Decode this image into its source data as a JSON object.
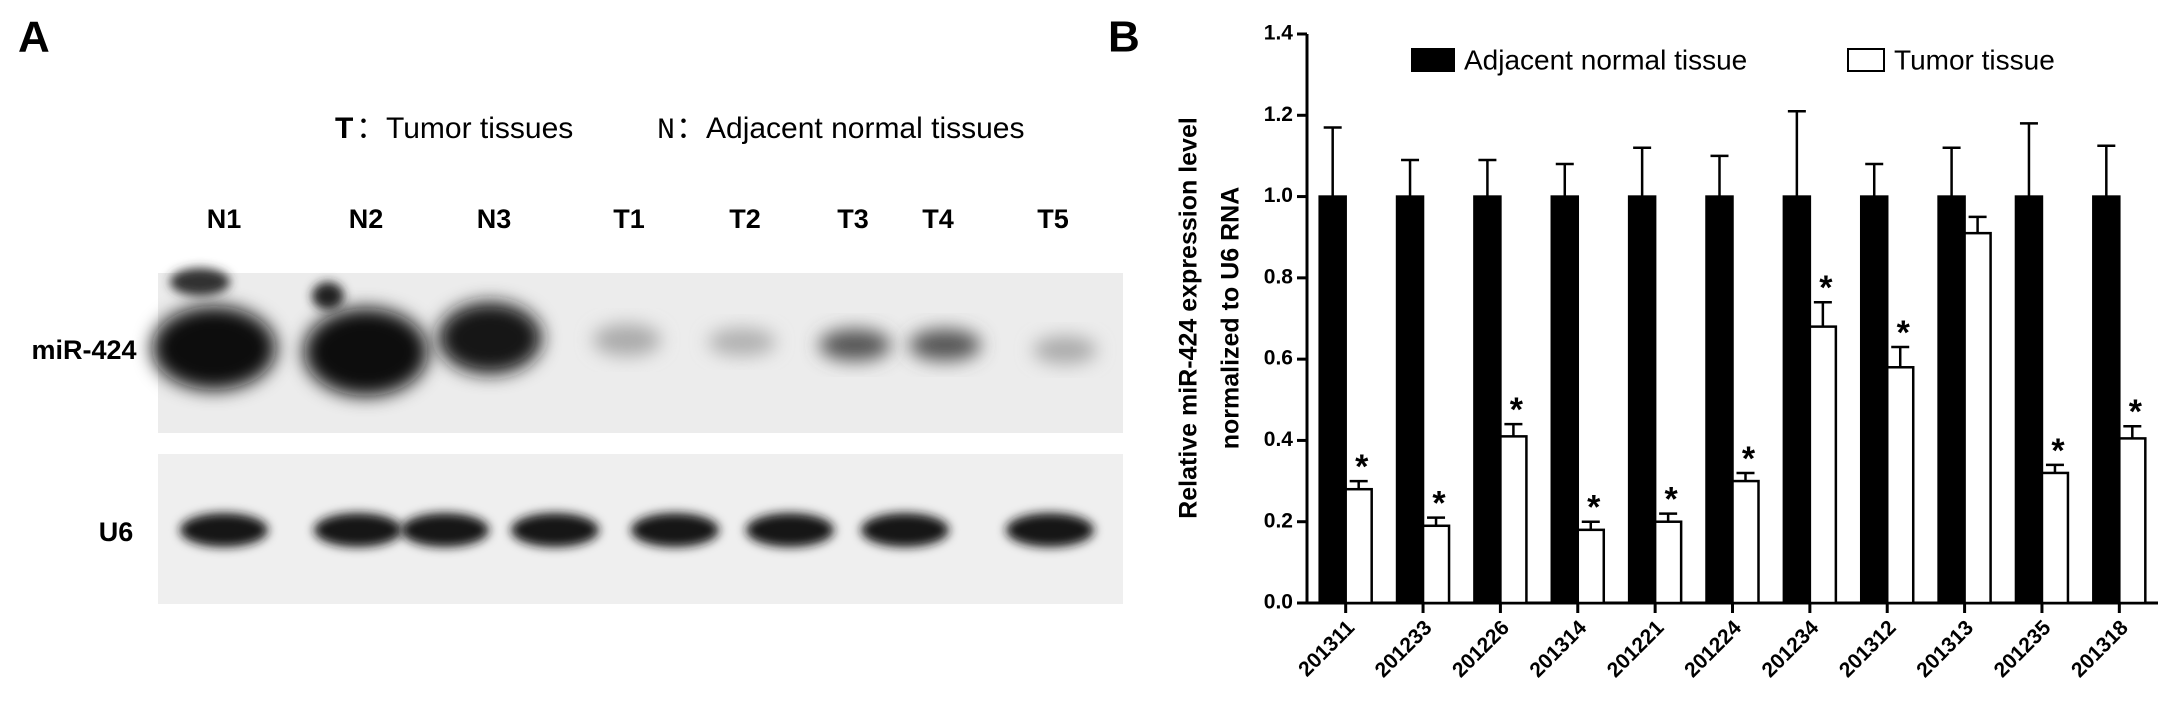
{
  "panel_a": {
    "label": "A",
    "legend": [
      {
        "key": "T",
        "text": "：Tumor tissues"
      },
      {
        "key": "N",
        "text": "：Adjacent normal tissues"
      }
    ],
    "lanes": [
      "N1",
      "N2",
      "N3",
      "T1",
      "T2",
      "T3",
      "T4",
      "T5"
    ],
    "rows": [
      "miR-424",
      "U6"
    ]
  },
  "chart_data": {
    "type": "bar",
    "panel_label": "B",
    "ylabel": [
      "Relative miR-424 expression level",
      "normalized to U6 RNA"
    ],
    "categories": [
      "201311",
      "201233",
      "201226",
      "201314",
      "201221",
      "201224",
      "201234",
      "201312",
      "201313",
      "201235",
      "201318"
    ],
    "series": [
      {
        "name": "Adjacent normal tissue",
        "color": "#000000",
        "values": [
          1.0,
          1.0,
          1.0,
          1.0,
          1.0,
          1.0,
          1.0,
          1.0,
          1.0,
          1.0,
          1.0
        ],
        "errors": [
          0.17,
          0.09,
          0.09,
          0.08,
          0.12,
          0.1,
          0.21,
          0.08,
          0.12,
          0.18,
          0.125
        ]
      },
      {
        "name": "Tumor tissue",
        "color": "#ffffff",
        "values": [
          0.28,
          0.19,
          0.41,
          0.18,
          0.2,
          0.3,
          0.68,
          0.58,
          0.91,
          0.32,
          0.405
        ],
        "errors": [
          0.02,
          0.02,
          0.03,
          0.02,
          0.02,
          0.02,
          0.06,
          0.05,
          0.04,
          0.02,
          0.03
        ],
        "significance": [
          "*",
          "*",
          "*",
          "*",
          "*",
          "*",
          "*",
          "*",
          null,
          "*",
          "*"
        ]
      }
    ],
    "ylim": [
      0,
      1.4
    ],
    "yticks": [
      {
        "value": 0,
        "label": "0.0"
      },
      0.2,
      0.4,
      0.6,
      0.8,
      {
        "value": 1,
        "label": "1.0"
      },
      1.2,
      1.4
    ]
  }
}
